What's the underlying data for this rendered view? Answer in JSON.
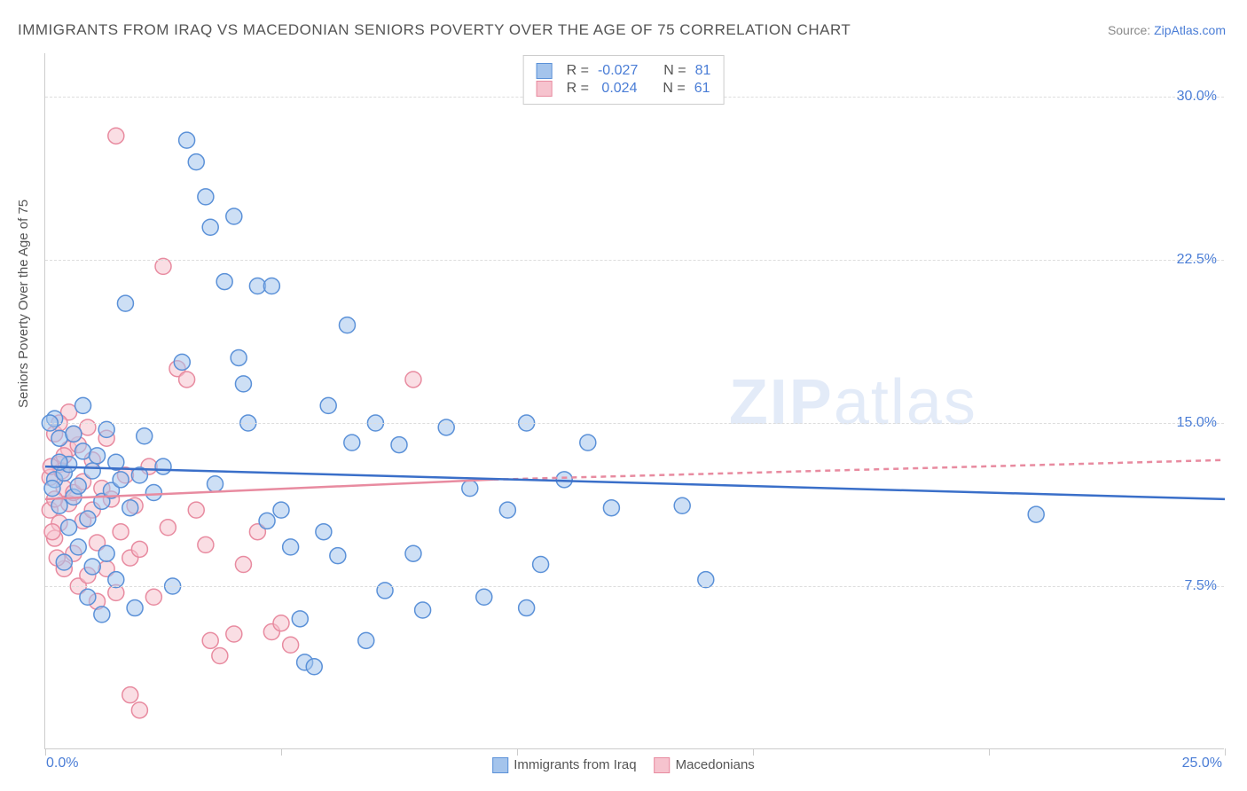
{
  "title": "IMMIGRANTS FROM IRAQ VS MACEDONIAN SENIORS POVERTY OVER THE AGE OF 75 CORRELATION CHART",
  "source_prefix": "Source: ",
  "source_name": "ZipAtlas.com",
  "y_axis_label": "Seniors Poverty Over the Age of 75",
  "watermark_bold": "ZIP",
  "watermark_light": "atlas",
  "chart": {
    "type": "scatter",
    "xlim": [
      0,
      25
    ],
    "ylim": [
      0,
      32
    ],
    "x_min_label": "0.0%",
    "x_max_label": "25.0%",
    "x_tick_positions": [
      0,
      5,
      10,
      15,
      20,
      25
    ],
    "y_ticks": [
      {
        "v": 7.5,
        "label": "7.5%"
      },
      {
        "v": 15.0,
        "label": "15.0%"
      },
      {
        "v": 22.5,
        "label": "22.5%"
      },
      {
        "v": 30.0,
        "label": "30.0%"
      }
    ],
    "grid_color": "#dddddd",
    "axis_color": "#cccccc",
    "background_color": "#ffffff",
    "point_radius": 9,
    "point_opacity": 0.55,
    "trend_line_width": 2.5,
    "series": [
      {
        "id": "iraq",
        "label": "Immigrants from Iraq",
        "color_fill": "#a4c4ec",
        "color_stroke": "#5b91d8",
        "R": "-0.027",
        "N": "81",
        "trend": {
          "x1": 0,
          "y1": 13.0,
          "x2": 25,
          "y2": 11.5,
          "dashed": false
        },
        "points": [
          [
            0.2,
            15.2
          ],
          [
            0.2,
            12.4
          ],
          [
            0.3,
            14.3
          ],
          [
            0.3,
            11.2
          ],
          [
            0.4,
            12.7
          ],
          [
            0.4,
            8.6
          ],
          [
            0.5,
            13.1
          ],
          [
            0.5,
            10.2
          ],
          [
            0.6,
            11.6
          ],
          [
            0.6,
            14.5
          ],
          [
            0.7,
            9.3
          ],
          [
            0.7,
            12.1
          ],
          [
            0.8,
            13.7
          ],
          [
            0.8,
            15.8
          ],
          [
            0.9,
            7.0
          ],
          [
            0.9,
            10.6
          ],
          [
            1.0,
            12.8
          ],
          [
            1.0,
            8.4
          ],
          [
            1.1,
            13.5
          ],
          [
            1.2,
            11.4
          ],
          [
            1.2,
            6.2
          ],
          [
            1.3,
            14.7
          ],
          [
            1.3,
            9.0
          ],
          [
            1.4,
            11.9
          ],
          [
            1.5,
            13.2
          ],
          [
            1.5,
            7.8
          ],
          [
            1.6,
            12.4
          ],
          [
            1.7,
            20.5
          ],
          [
            1.8,
            11.1
          ],
          [
            1.9,
            6.5
          ],
          [
            2.0,
            12.6
          ],
          [
            2.1,
            14.4
          ],
          [
            2.3,
            11.8
          ],
          [
            2.5,
            13.0
          ],
          [
            2.7,
            7.5
          ],
          [
            2.9,
            17.8
          ],
          [
            3.0,
            28.0
          ],
          [
            3.2,
            27.0
          ],
          [
            3.4,
            25.4
          ],
          [
            3.5,
            24.0
          ],
          [
            3.6,
            12.2
          ],
          [
            3.8,
            21.5
          ],
          [
            4.0,
            24.5
          ],
          [
            4.1,
            18.0
          ],
          [
            4.2,
            16.8
          ],
          [
            4.3,
            15.0
          ],
          [
            4.5,
            21.3
          ],
          [
            4.7,
            10.5
          ],
          [
            4.8,
            21.3
          ],
          [
            5.0,
            11.0
          ],
          [
            5.2,
            9.3
          ],
          [
            5.4,
            6.0
          ],
          [
            5.5,
            4.0
          ],
          [
            5.7,
            3.8
          ],
          [
            5.9,
            10.0
          ],
          [
            6.0,
            15.8
          ],
          [
            6.2,
            8.9
          ],
          [
            6.4,
            19.5
          ],
          [
            6.5,
            14.1
          ],
          [
            6.8,
            5.0
          ],
          [
            7.0,
            15.0
          ],
          [
            7.2,
            7.3
          ],
          [
            7.5,
            14.0
          ],
          [
            7.8,
            9.0
          ],
          [
            8.0,
            6.4
          ],
          [
            8.5,
            14.8
          ],
          [
            9.0,
            12.0
          ],
          [
            9.3,
            7.0
          ],
          [
            9.8,
            11.0
          ],
          [
            10.2,
            15.0
          ],
          [
            10.2,
            6.5
          ],
          [
            10.5,
            8.5
          ],
          [
            11.0,
            12.4
          ],
          [
            11.5,
            14.1
          ],
          [
            12.0,
            11.1
          ],
          [
            13.5,
            11.2
          ],
          [
            14.0,
            7.8
          ],
          [
            21.0,
            10.8
          ],
          [
            0.1,
            15.0
          ],
          [
            0.3,
            13.2
          ],
          [
            0.15,
            12.0
          ]
        ]
      },
      {
        "id": "macedonian",
        "label": "Macedonians",
        "color_fill": "#f6c3ce",
        "color_stroke": "#e88ba0",
        "R": "0.024",
        "N": "61",
        "trend_solid": {
          "x1": 0,
          "y1": 11.5,
          "x2": 9.5,
          "y2": 12.4
        },
        "trend_dashed": {
          "x1": 9.5,
          "y1": 12.4,
          "x2": 25,
          "y2": 13.3
        },
        "points": [
          [
            0.1,
            11.0
          ],
          [
            0.1,
            12.5
          ],
          [
            0.2,
            14.5
          ],
          [
            0.2,
            9.7
          ],
          [
            0.3,
            13.1
          ],
          [
            0.3,
            10.4
          ],
          [
            0.4,
            12.0
          ],
          [
            0.4,
            8.3
          ],
          [
            0.5,
            11.3
          ],
          [
            0.5,
            13.8
          ],
          [
            0.5,
            15.5
          ],
          [
            0.6,
            9.0
          ],
          [
            0.6,
            11.8
          ],
          [
            0.7,
            14.0
          ],
          [
            0.7,
            7.5
          ],
          [
            0.8,
            12.3
          ],
          [
            0.8,
            10.5
          ],
          [
            0.9,
            8.0
          ],
          [
            0.9,
            14.8
          ],
          [
            1.0,
            11.0
          ],
          [
            1.0,
            13.3
          ],
          [
            1.1,
            6.8
          ],
          [
            1.1,
            9.5
          ],
          [
            1.2,
            12.0
          ],
          [
            1.3,
            8.3
          ],
          [
            1.3,
            14.3
          ],
          [
            1.4,
            11.5
          ],
          [
            1.5,
            7.2
          ],
          [
            1.5,
            28.2
          ],
          [
            1.6,
            10.0
          ],
          [
            1.7,
            12.6
          ],
          [
            1.8,
            8.8
          ],
          [
            1.9,
            11.2
          ],
          [
            2.0,
            9.2
          ],
          [
            2.2,
            13.0
          ],
          [
            2.3,
            7.0
          ],
          [
            2.5,
            22.2
          ],
          [
            2.6,
            10.2
          ],
          [
            2.8,
            17.5
          ],
          [
            3.0,
            17.0
          ],
          [
            3.2,
            11.0
          ],
          [
            3.4,
            9.4
          ],
          [
            3.5,
            5.0
          ],
          [
            3.7,
            4.3
          ],
          [
            4.0,
            5.3
          ],
          [
            4.2,
            8.5
          ],
          [
            4.5,
            10.0
          ],
          [
            4.8,
            5.4
          ],
          [
            5.0,
            5.8
          ],
          [
            5.2,
            4.8
          ],
          [
            2.0,
            1.8
          ],
          [
            1.8,
            2.5
          ],
          [
            0.3,
            15.0
          ],
          [
            0.4,
            13.5
          ],
          [
            0.6,
            14.5
          ],
          [
            0.2,
            11.5
          ],
          [
            0.15,
            10.0
          ],
          [
            0.25,
            8.8
          ],
          [
            0.35,
            12.8
          ],
          [
            7.8,
            17.0
          ],
          [
            0.12,
            13.0
          ]
        ]
      }
    ]
  },
  "stats_labels": {
    "R": "R =",
    "N": "N ="
  }
}
